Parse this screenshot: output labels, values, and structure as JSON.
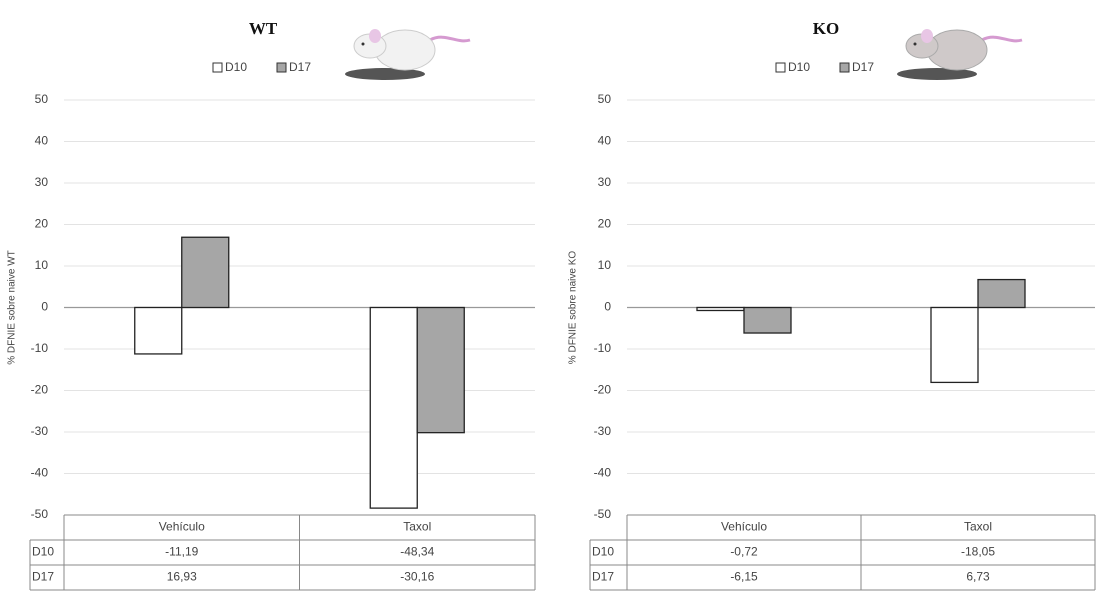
{
  "chart_data": [
    {
      "type": "bar",
      "title": "WT",
      "ylabel": "% DFNIE sobre naive WT",
      "categories": [
        "Vehículo",
        "Taxol"
      ],
      "series": [
        {
          "name": "D10",
          "color": "#ffffff",
          "values": [
            -11.19,
            -48.34
          ],
          "value_labels": [
            "-11,19",
            "-48,34"
          ]
        },
        {
          "name": "D17",
          "color": "#a6a6a6",
          "values": [
            16.93,
            -30.16
          ],
          "value_labels": [
            "16,93",
            "-30,16"
          ]
        }
      ],
      "ylim": [
        -50,
        50
      ],
      "yticks": [
        -50,
        -40,
        -30,
        -20,
        -10,
        0,
        10,
        20,
        30,
        40,
        50
      ],
      "grid": true
    },
    {
      "type": "bar",
      "title": "KO",
      "ylabel": "% DFNIE sobre naive KO",
      "categories": [
        "Vehículo",
        "Taxol"
      ],
      "series": [
        {
          "name": "D10",
          "color": "#ffffff",
          "values": [
            -0.72,
            -18.05
          ],
          "value_labels": [
            "-0,72",
            "-18,05"
          ]
        },
        {
          "name": "D17",
          "color": "#a6a6a6",
          "values": [
            -6.15,
            6.73
          ],
          "value_labels": [
            "-6,15",
            "6,73"
          ]
        }
      ],
      "ylim": [
        -50,
        50
      ],
      "yticks": [
        -50,
        -40,
        -30,
        -20,
        -10,
        0,
        10,
        20,
        30,
        40,
        50
      ],
      "grid": true
    }
  ]
}
